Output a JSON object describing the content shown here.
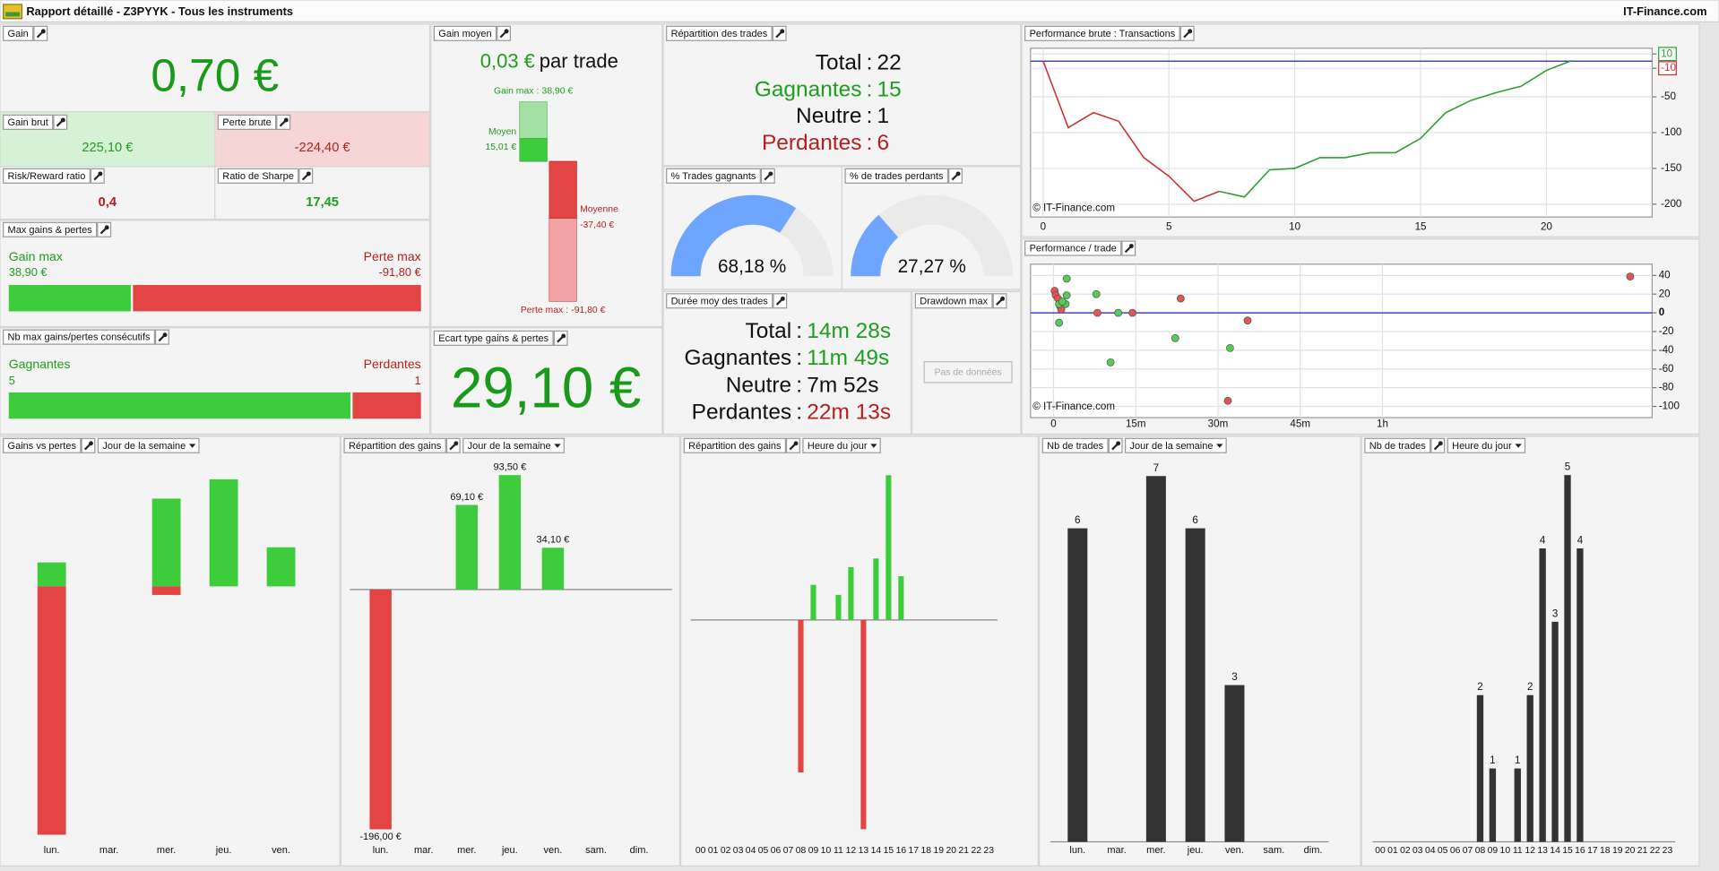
{
  "header": {
    "title": "Rapport détaillé - Z3PYYK - Tous les instruments",
    "brand": "IT-Finance.com"
  },
  "separator": ":",
  "gain": {
    "title": "Gain",
    "value": "0,70 €"
  },
  "gain_brut": {
    "title": "Gain brut",
    "value": "225,10 €"
  },
  "perte_brute": {
    "title": "Perte brute",
    "value": "-224,40 €"
  },
  "risk_reward": {
    "title": "Risk/Reward ratio",
    "value": "0,4"
  },
  "sharpe": {
    "title": "Ratio de Sharpe",
    "value": "17,45"
  },
  "gain_moyen": {
    "value": "0,03 €",
    "unit": "par trade"
  },
  "ecart_type": {
    "title": "Ecart type gains & pertes",
    "value": "29,10 €"
  },
  "repartition_trades": {
    "title": "Répartition des trades",
    "rows": [
      {
        "label": "Total",
        "value": "22",
        "color": "#111111"
      },
      {
        "label": "Gagnantes",
        "value": "15",
        "color": "#1e9e1e"
      },
      {
        "label": "Neutre",
        "value": "1",
        "color": "#111111"
      },
      {
        "label": "Perdantes",
        "value": "6",
        "color": "#b81e1e"
      }
    ]
  },
  "duree_moy": {
    "title": "Durée moy des trades",
    "rows": [
      {
        "label": "Total",
        "value": "14m 28s",
        "color": "#1e9e1e"
      },
      {
        "label": "Gagnantes",
        "value": "11m 49s",
        "color": "#1e9e1e"
      },
      {
        "label": "Neutre",
        "value": "7m 52s",
        "color": "#111111"
      },
      {
        "label": "Perdantes",
        "value": "22m 13s",
        "color": "#b81e1e"
      }
    ]
  },
  "drawdown": {
    "title": "Drawdown max",
    "button": "Pas de données"
  },
  "chart_data": [
    {
      "type": "line",
      "title": "Performance brute : Transactions",
      "x": [
        0,
        1,
        2,
        3,
        4,
        5,
        6,
        7,
        8,
        9,
        10,
        11,
        12,
        13,
        14,
        15,
        16,
        17,
        18,
        19,
        20,
        21
      ],
      "series": [
        {
          "color": "#cc3333",
          "values": [
            0,
            -93,
            -72,
            -84,
            -135,
            -161,
            -196,
            -182,
            null,
            null,
            null,
            null,
            null,
            null,
            null,
            null,
            null,
            null,
            null,
            null,
            null,
            null
          ]
        },
        {
          "color": "#2ca02c",
          "values": [
            null,
            null,
            null,
            null,
            null,
            null,
            null,
            -182,
            -190,
            -152,
            -150,
            -135,
            -135,
            -128,
            -128,
            -108,
            -72,
            -55,
            -44,
            -35,
            -13,
            0.7
          ]
        }
      ],
      "xlim": [
        -0.5,
        24.2
      ],
      "ylim": [
        -218,
        18
      ],
      "xticks": [
        0,
        5,
        10,
        15,
        20
      ],
      "yticks": [
        10,
        -10,
        -50,
        -100,
        -150,
        -200
      ],
      "ytick_colors": [
        "#2ca02c",
        "#cc3333",
        null,
        null,
        null,
        null
      ],
      "hline": 0,
      "hline_color": "#2222bb",
      "grid": true,
      "annotation": "© IT-Finance.com"
    },
    {
      "type": "scatter",
      "title": "Performance / trade",
      "series": [
        {
          "color": "#e05555",
          "x": [
            0.2,
            0.4,
            0.8,
            1.2,
            1.4,
            8,
            14.4,
            23.2,
            35.4,
            31.8,
            105.2
          ],
          "values": [
            23.5,
            18.8,
            15.3,
            7.1,
            3.5,
            0,
            0,
            15.3,
            -8.2,
            -94,
            38.8
          ]
        },
        {
          "color": "#55cc55",
          "x": [
            2.4,
            2.4,
            1,
            2.2,
            1,
            7.8,
            11.8,
            10.4,
            22.2,
            32.2,
            1.6
          ],
          "values": [
            36.5,
            18.8,
            9.4,
            9.4,
            -10.6,
            20,
            0,
            -52.9,
            -27.1,
            -37.6,
            12
          ]
        }
      ],
      "xlim": [
        -4.2,
        109.2
      ],
      "ylim": [
        -112,
        52
      ],
      "xticks": [
        0,
        {
          "value": 15,
          "label": "15m"
        },
        {
          "value": 30,
          "label": "30m"
        },
        {
          "value": 45,
          "label": "45m"
        },
        {
          "value": 60,
          "label": "1h"
        }
      ],
      "yticks": [
        40,
        20,
        0,
        -20,
        -40,
        -60,
        -80,
        -100
      ],
      "hline": 0,
      "hline_color": "#2222bb",
      "grid": true,
      "annotation": "© IT-Finance.com"
    },
    {
      "type": "bar",
      "title": "Gains vs pertes",
      "selector": "Jour de la semaine",
      "categories": [
        "lun.",
        "mar.",
        "mer.",
        "jeu.",
        "ven."
      ],
      "series": [
        {
          "color": "#3ccc3c",
          "values": [
            20.9,
            0,
            76.6,
            93.5,
            34.1
          ]
        },
        {
          "color": "#e34444",
          "values": [
            -216.9,
            0,
            -7.5,
            0,
            0
          ]
        }
      ],
      "ylim": [
        -225,
        110
      ]
    },
    {
      "type": "bar",
      "title": "Répartition des gains",
      "selector": "Jour de la semaine",
      "categories": [
        "lun.",
        "mar.",
        "mer.",
        "jeu.",
        "ven.",
        "sam.",
        "dim."
      ],
      "values": [
        -196,
        0,
        69.1,
        93.5,
        34.1,
        0,
        0
      ],
      "value_labels": [
        "-196,00 €",
        null,
        "69,10 €",
        "93,50 €",
        "34,10 €",
        null,
        null
      ],
      "color": "#3ccc3c",
      "negative_color": "#e34444",
      "ylim": [
        -208,
        105.5
      ],
      "baseline": true
    },
    {
      "type": "bar",
      "title": "Répartition des gains",
      "selector": "Heure du jour",
      "categories": [
        "00",
        "01",
        "02",
        "03",
        "04",
        "05",
        "06",
        "07",
        "08",
        "09",
        "10",
        "11",
        "12",
        "13",
        "14",
        "15",
        "16",
        "17",
        "18",
        "19",
        "20",
        "21",
        "22",
        "23"
      ],
      "values": [
        0,
        0,
        0,
        0,
        0,
        0,
        0,
        0,
        -94.6,
        21.8,
        0,
        15.6,
        32.7,
        -129.8,
        38.1,
        89.8,
        27.1,
        0,
        0,
        0,
        0,
        0,
        0,
        0
      ],
      "color": "#3ccc3c",
      "negative_color": "#e34444",
      "ylim": [
        -139,
        99
      ],
      "baseline": true
    },
    {
      "type": "bar",
      "title": "Nb de trades",
      "selector": "Jour de la semaine",
      "categories": [
        "lun.",
        "mar.",
        "mer.",
        "jeu.",
        "ven.",
        "sam.",
        "dim."
      ],
      "values": [
        6,
        0,
        7,
        6,
        3,
        0,
        0
      ],
      "color": "#333333",
      "ylim": [
        0,
        7.3
      ],
      "show_values": true,
      "baseline": true
    },
    {
      "type": "bar",
      "title": "Nb de trades",
      "selector": "Heure du jour",
      "categories": [
        "00",
        "01",
        "02",
        "03",
        "04",
        "05",
        "06",
        "07",
        "08",
        "09",
        "10",
        "11",
        "12",
        "13",
        "14",
        "15",
        "16",
        "17",
        "18",
        "19",
        "20",
        "21",
        "22",
        "23"
      ],
      "values": [
        0,
        0,
        0,
        0,
        0,
        0,
        0,
        0,
        2,
        1,
        0,
        1,
        2,
        4,
        3,
        5,
        4,
        0,
        0,
        0,
        0,
        0,
        0,
        0
      ],
      "color": "#333333",
      "ylim": [
        0,
        5.2
      ],
      "show_values": true,
      "baseline": true
    },
    {
      "type": "gauge",
      "title": "% Trades gagnants",
      "values": [
        68.18
      ],
      "value_labels": [
        "68,18 %"
      ],
      "ylim": [
        0,
        100
      ],
      "color": "#6ea6ff",
      "track_color": "#eaeaea"
    },
    {
      "type": "gauge",
      "title": "% de trades perdants",
      "values": [
        27.27
      ],
      "value_labels": [
        "27,27 %"
      ],
      "ylim": [
        0,
        100
      ],
      "color": "#6ea6ff",
      "track_color": "#eaeaea"
    },
    {
      "type": "range_bar",
      "title": "Gain moyen",
      "series": [
        {
          "name": "Gain max",
          "values": [
            38.9
          ],
          "value_labels": [
            "38,90 €"
          ],
          "color": "#a3e0a3",
          "text_color": "#1e9e1e"
        },
        {
          "name": "Moyen",
          "values": [
            15.01
          ],
          "value_labels": [
            "15,01 €"
          ],
          "color": "#3ccc3c",
          "text_color": "#1e9e1e"
        },
        {
          "name": "Perte max",
          "values": [
            -91.8
          ],
          "value_labels": [
            "-91,80 €"
          ],
          "color": "#f2a3a3",
          "text_color": "#b81e1e"
        },
        {
          "name": "Moyenne",
          "values": [
            -37.4
          ],
          "value_labels": [
            "-37,40 €"
          ],
          "color": "#e34444",
          "text_color": "#b81e1e"
        }
      ]
    },
    {
      "type": "split_bar",
      "title": "Max gains & pertes",
      "series": [
        {
          "name": "Gain max",
          "values": [
            38.9
          ],
          "value_labels": [
            "38,90 €"
          ],
          "color": "#3ccc3c",
          "text_color": "#1e9e1e"
        },
        {
          "name": "Perte max",
          "values": [
            -91.8
          ],
          "value_labels": [
            "-91,80 €"
          ],
          "color": "#e34444",
          "text_color": "#b81e1e"
        }
      ]
    },
    {
      "type": "split_bar",
      "title": "Nb max gains/pertes consécutifs",
      "series": [
        {
          "name": "Gagnantes",
          "values": [
            5
          ],
          "color": "#3ccc3c",
          "text_color": "#1e9e1e"
        },
        {
          "name": "Perdantes",
          "values": [
            1
          ],
          "color": "#e34444",
          "text_color": "#b81e1e"
        }
      ]
    }
  ]
}
